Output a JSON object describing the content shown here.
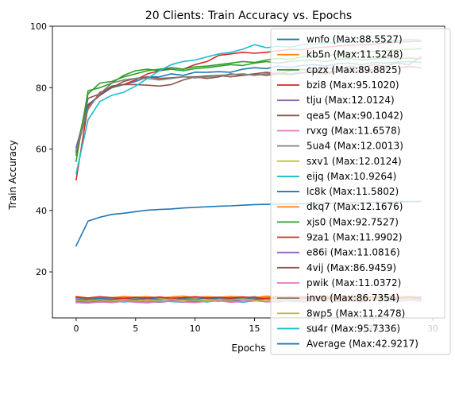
{
  "chart_data": {
    "type": "line",
    "title": "20 Clients: Train Accuracy vs. Epochs",
    "xlabel": "Epochs",
    "ylabel": "Train Accuracy",
    "xlim": [
      -2,
      31
    ],
    "ylim": [
      5,
      100
    ],
    "xticks": [
      0,
      5,
      10,
      15,
      20,
      25,
      30
    ],
    "yticks": [
      20,
      40,
      60,
      80,
      100
    ],
    "grid": false,
    "legend_position": "right, overlapping plot",
    "x": [
      0,
      1,
      2,
      3,
      4,
      5,
      6,
      7,
      8,
      9,
      10,
      11,
      12,
      13,
      14,
      15,
      16,
      17,
      18,
      19,
      20,
      21,
      22,
      23,
      24,
      25,
      26,
      27,
      28,
      29
    ],
    "series": [
      {
        "name": "wnfo (Max:88.5527)",
        "color": "#1f77b4",
        "values": [
          60.5,
          74.5,
          77.5,
          80.0,
          81.0,
          82.0,
          83.5,
          83.5,
          84.5,
          84.0,
          85.0,
          85.0,
          85.2,
          85.0,
          86.0,
          86.5,
          86.2,
          87.0,
          86.5,
          87.2,
          87.5,
          87.0,
          87.8,
          88.0,
          87.5,
          88.2,
          88.0,
          88.3,
          88.5,
          88.2
        ]
      },
      {
        "name": "kb5n (Max:11.5248)",
        "color": "#ff7f0e",
        "values": [
          11.0,
          11.2,
          10.8,
          11.3,
          11.0,
          11.4,
          11.2,
          11.0,
          11.3,
          11.1,
          11.5,
          11.2,
          11.0,
          11.4,
          11.3,
          11.1,
          11.2,
          11.5,
          11.0,
          11.3,
          11.2,
          11.4,
          11.1,
          11.3,
          11.0,
          11.2,
          11.4,
          11.1,
          11.3,
          11.2
        ]
      },
      {
        "name": "cpzx (Max:89.8825)",
        "color": "#2ca02c",
        "values": [
          56.0,
          79.0,
          80.0,
          81.5,
          84.0,
          85.5,
          86.0,
          85.5,
          86.0,
          85.5,
          86.2,
          86.5,
          87.0,
          87.5,
          87.2,
          88.0,
          88.5,
          88.0,
          88.5,
          88.8,
          89.0,
          88.5,
          89.2,
          89.5,
          89.0,
          89.3,
          89.8,
          89.5,
          89.6,
          89.4
        ]
      },
      {
        "name": "bzi8 (Max:95.1020)",
        "color": "#d62728",
        "values": [
          50.0,
          74.0,
          77.5,
          80.5,
          81.0,
          82.5,
          84.5,
          85.5,
          86.5,
          86.0,
          87.5,
          88.5,
          90.5,
          91.0,
          91.5,
          91.2,
          91.5,
          92.0,
          92.5,
          92.3,
          93.0,
          93.2,
          93.5,
          93.8,
          94.0,
          94.2,
          94.5,
          94.8,
          95.0,
          95.1
        ]
      },
      {
        "name": "tlju (Max:12.0124)",
        "color": "#9467bd",
        "values": [
          11.5,
          11.0,
          11.5,
          11.2,
          11.8,
          11.3,
          11.0,
          11.6,
          11.4,
          11.2,
          11.8,
          11.5,
          11.3,
          11.7,
          11.4,
          11.9,
          11.5,
          11.2,
          11.6,
          11.8,
          11.4,
          11.7,
          11.5,
          12.0,
          11.6,
          11.3,
          11.8,
          11.5,
          11.9,
          11.6
        ]
      },
      {
        "name": "qea5 (Max:90.1042)",
        "color": "#8c564b",
        "values": [
          59.5,
          76.5,
          78.0,
          80.5,
          81.0,
          81.0,
          80.8,
          80.5,
          81.0,
          82.5,
          83.5,
          83.0,
          83.5,
          84.5,
          84.0,
          84.5,
          85.0,
          84.5,
          85.5,
          86.0,
          85.5,
          86.5,
          86.0,
          87.0,
          86.5,
          87.5,
          87.0,
          88.0,
          87.5,
          90.1
        ]
      },
      {
        "name": "rvxg (Max:11.6578)",
        "color": "#e377c2",
        "values": [
          10.5,
          10.0,
          10.5,
          10.3,
          10.8,
          10.5,
          11.0,
          10.2,
          10.6,
          10.9,
          10.4,
          10.8,
          11.1,
          10.5,
          10.9,
          10.6,
          11.2,
          10.8,
          10.5,
          11.0,
          11.3,
          10.7,
          11.0,
          11.4,
          10.8,
          11.1,
          11.6,
          10.9,
          11.2,
          11.0
        ]
      },
      {
        "name": "5ua4 (Max:12.0013)",
        "color": "#7f7f7f",
        "values": [
          11.0,
          11.5,
          11.2,
          11.0,
          11.8,
          11.3,
          11.5,
          11.0,
          11.6,
          11.2,
          11.4,
          11.7,
          11.0,
          11.5,
          11.3,
          11.8,
          11.2,
          11.6,
          11.4,
          11.9,
          11.3,
          11.5,
          12.0,
          11.4,
          11.7,
          11.2,
          11.6,
          11.8,
          11.4,
          11.5
        ]
      },
      {
        "name": "sxv1 (Max:12.0124)",
        "color": "#bcbd22",
        "values": [
          10.5,
          11.0,
          11.2,
          10.8,
          11.3,
          11.0,
          11.5,
          11.2,
          10.9,
          11.4,
          11.1,
          11.6,
          11.3,
          11.0,
          11.5,
          11.2,
          11.8,
          11.4,
          11.1,
          11.6,
          11.3,
          11.9,
          11.5,
          11.2,
          11.7,
          11.4,
          12.0,
          11.6,
          11.3,
          11.5
        ]
      },
      {
        "name": "eijq (Max:10.9264)",
        "color": "#17becf",
        "values": [
          10.0,
          10.3,
          10.1,
          10.5,
          10.2,
          10.4,
          10.0,
          10.6,
          10.3,
          10.1,
          10.5,
          10.2,
          10.7,
          10.4,
          10.1,
          10.6,
          10.3,
          10.8,
          10.5,
          10.2,
          10.7,
          10.4,
          10.9,
          10.5,
          10.3,
          10.8,
          10.6,
          10.4,
          10.7,
          10.5
        ]
      },
      {
        "name": "lc8k (Max:11.5802)",
        "color": "#1f77b4",
        "values": [
          10.8,
          11.0,
          11.3,
          10.9,
          11.2,
          11.0,
          11.4,
          11.1,
          10.9,
          11.3,
          11.0,
          11.5,
          11.2,
          11.0,
          11.4,
          11.1,
          11.3,
          11.6,
          11.2,
          11.0,
          11.4,
          11.2,
          11.5,
          11.1,
          11.3,
          11.0,
          11.4,
          11.2,
          11.5,
          11.3
        ]
      },
      {
        "name": "dkq7 (Max:12.1676)",
        "color": "#ff7f0e",
        "values": [
          12.0,
          11.5,
          11.8,
          11.6,
          12.0,
          11.7,
          11.9,
          11.5,
          11.8,
          12.1,
          11.6,
          11.9,
          11.7,
          12.0,
          11.8,
          11.6,
          12.1,
          11.9,
          11.7,
          12.0,
          11.8,
          12.2,
          11.9,
          11.7,
          12.0,
          11.8,
          12.1,
          11.9,
          12.0,
          11.8
        ]
      },
      {
        "name": "xjs0 (Max:92.7527)",
        "color": "#2ca02c",
        "values": [
          58.0,
          78.0,
          81.5,
          82.0,
          83.5,
          84.5,
          85.5,
          86.0,
          86.5,
          86.0,
          86.8,
          87.0,
          87.5,
          88.0,
          88.5,
          88.2,
          89.0,
          89.5,
          89.2,
          90.0,
          90.5,
          90.2,
          91.0,
          91.2,
          91.5,
          91.8,
          92.0,
          92.3,
          92.5,
          92.7
        ]
      },
      {
        "name": "9za1 (Max:11.9902)",
        "color": "#d62728",
        "values": [
          11.8,
          11.5,
          11.9,
          11.6,
          11.3,
          11.7,
          11.5,
          11.8,
          11.4,
          11.6,
          11.9,
          11.5,
          11.7,
          11.4,
          11.8,
          11.6,
          11.3,
          11.7,
          11.9,
          11.5,
          11.8,
          11.6,
          11.4,
          11.7,
          12.0,
          11.6,
          11.8,
          11.5,
          11.7,
          11.6
        ]
      },
      {
        "name": "e86i (Max:11.0816)",
        "color": "#9467bd",
        "values": [
          10.5,
          10.2,
          10.6,
          10.0,
          10.4,
          10.7,
          10.3,
          10.1,
          10.5,
          10.8,
          10.2,
          10.6,
          10.4,
          10.9,
          10.3,
          10.7,
          10.5,
          10.2,
          10.8,
          10.4,
          11.0,
          10.6,
          10.3,
          10.9,
          10.5,
          10.7,
          11.1,
          10.6,
          10.8,
          10.5
        ]
      },
      {
        "name": "4vij (Max:86.9459)",
        "color": "#8c564b",
        "values": [
          59.0,
          73.0,
          78.5,
          80.0,
          82.0,
          83.0,
          83.5,
          83.0,
          83.2,
          83.5,
          83.5,
          83.8,
          84.0,
          83.5,
          84.0,
          84.5,
          84.0,
          84.5,
          84.2,
          84.8,
          85.0,
          84.5,
          85.2,
          85.5,
          85.0,
          85.5,
          86.0,
          86.5,
          86.9,
          86.5
        ]
      },
      {
        "name": "pwik (Max:11.0372)",
        "color": "#e377c2",
        "values": [
          10.0,
          9.8,
          10.2,
          10.0,
          10.4,
          10.1,
          9.9,
          10.3,
          10.5,
          10.2,
          10.0,
          10.4,
          10.6,
          10.1,
          10.3,
          10.7,
          10.2,
          10.5,
          10.8,
          10.3,
          10.6,
          10.4,
          10.9,
          10.5,
          10.2,
          10.7,
          11.0,
          10.5,
          10.8,
          10.6
        ]
      },
      {
        "name": "invo (Max:86.7354)",
        "color": "#7f7f7f",
        "values": [
          59.5,
          73.5,
          78.0,
          81.5,
          82.5,
          83.0,
          83.0,
          82.5,
          83.0,
          83.5,
          83.2,
          83.5,
          84.0,
          84.2,
          84.5,
          84.0,
          84.5,
          84.8,
          84.5,
          85.0,
          85.2,
          85.0,
          85.5,
          85.8,
          85.5,
          86.0,
          86.2,
          86.5,
          86.7,
          86.5
        ]
      },
      {
        "name": "8wp5 (Max:11.2478)",
        "color": "#bcbd22",
        "values": [
          10.8,
          10.5,
          10.9,
          10.6,
          11.0,
          10.7,
          10.5,
          10.9,
          11.1,
          10.7,
          10.9,
          10.6,
          11.0,
          10.8,
          11.2,
          10.8,
          10.6,
          11.0,
          10.9,
          11.1,
          10.7,
          11.0,
          10.8,
          11.2,
          10.9,
          11.1,
          10.8,
          11.0,
          11.2,
          10.9
        ]
      },
      {
        "name": "su4r (Max:95.7336)",
        "color": "#17becf",
        "values": [
          52.0,
          69.5,
          75.5,
          77.5,
          78.5,
          80.5,
          83.0,
          85.5,
          87.5,
          88.5,
          89.0,
          90.0,
          91.0,
          91.5,
          92.5,
          94.0,
          93.0,
          93.5,
          93.2,
          94.0,
          94.2,
          94.5,
          94.8,
          95.0,
          94.8,
          95.2,
          95.5,
          95.3,
          95.7,
          95.5
        ]
      },
      {
        "name": "Average (Max:42.9217)",
        "color": "#1f77b4",
        "values": [
          28.5,
          36.5,
          37.8,
          38.7,
          39.1,
          39.6,
          40.1,
          40.3,
          40.5,
          40.8,
          41.0,
          41.2,
          41.4,
          41.5,
          41.7,
          41.9,
          42.0,
          42.0,
          42.1,
          42.2,
          42.3,
          42.3,
          42.4,
          42.5,
          42.5,
          42.6,
          42.7,
          42.8,
          42.9,
          42.9
        ]
      }
    ]
  }
}
